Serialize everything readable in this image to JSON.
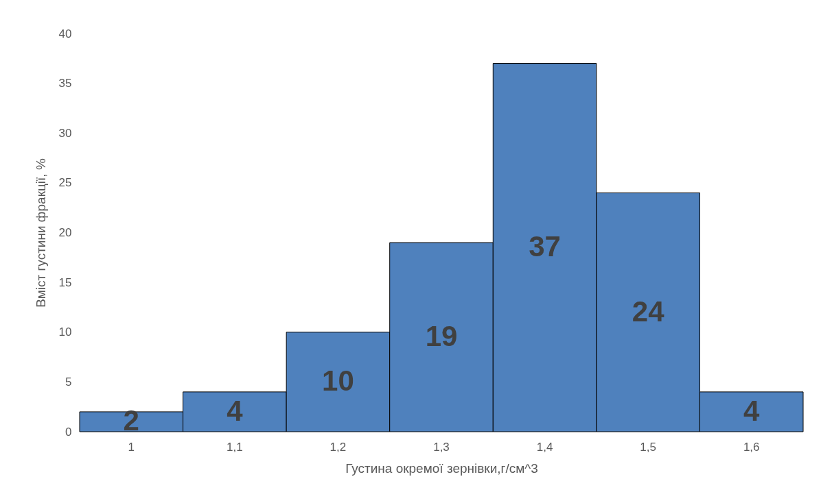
{
  "chart_data": {
    "type": "bar",
    "xlabel": "Густина окремої зернівки,г/см^3",
    "ylabel": "Вміст густини фракції, %",
    "categories": [
      "1",
      "1,1",
      "1,2",
      "1,3",
      "1,4",
      "1,5",
      "1,6"
    ],
    "values": [
      2,
      4,
      10,
      19,
      37,
      24,
      4
    ],
    "color": "#4f81bd",
    "ylim": [
      0,
      40
    ],
    "yticks": [
      0,
      5,
      10,
      15,
      20,
      25,
      30,
      35,
      40
    ],
    "grid": false,
    "data_labels": true
  }
}
